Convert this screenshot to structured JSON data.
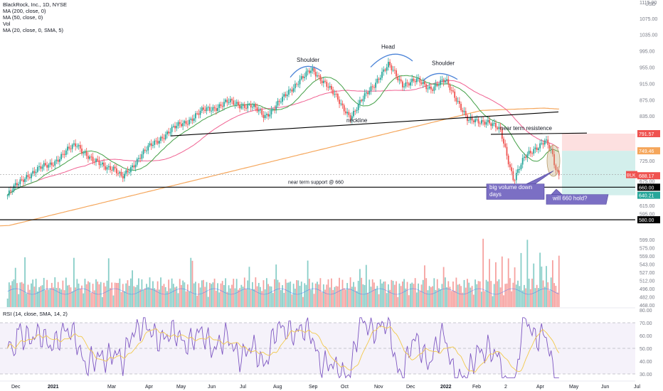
{
  "header": {
    "title": "BlackRock, Inc., 1D, NYSE",
    "indicators": [
      "MA (200, close, 0)",
      "MA (50, close, 0)",
      "Vol",
      "MA (20, close, 0, SMA, 5)"
    ],
    "currency": "USD"
  },
  "rsi_legend": "RSI (14, close, SMA, 14, 2)",
  "chart_data": [
    {
      "type": "candlestick",
      "ylim": [
        561,
        1120
      ],
      "price_axis_ticks": [
        1115.0,
        1075.0,
        1035.0,
        995.0,
        955.0,
        915.0,
        875.0,
        835.0,
        791.57,
        749.46,
        725.0,
        688.17,
        675.0,
        660.0,
        640.21,
        615.0,
        595.0,
        580.0
      ],
      "time_axis_ticks": [
        "Dec",
        "2021",
        "Mar",
        "Apr",
        "May",
        "Jun",
        "Jul",
        "Aug",
        "Sep",
        "Oct",
        "Nov",
        "Dec",
        "2022",
        "Feb",
        "2",
        "Apr",
        "May",
        "Jun",
        "Jul"
      ],
      "close_path": [
        [
          "2020-11-23",
          640
        ],
        [
          "2020-12-10",
          688
        ],
        [
          "2020-12-31",
          715
        ],
        [
          "2021-01-13",
          738
        ],
        [
          "2021-01-26",
          768
        ],
        [
          "2021-02-10",
          722
        ],
        [
          "2021-03-01",
          708
        ],
        [
          "2021-03-09",
          680
        ],
        [
          "2021-03-25",
          735
        ],
        [
          "2021-04-15",
          785
        ],
        [
          "2021-05-03",
          815
        ],
        [
          "2021-05-24",
          848
        ],
        [
          "2021-06-15",
          868
        ],
        [
          "2021-07-06",
          860
        ],
        [
          "2021-07-19",
          835
        ],
        [
          "2021-08-05",
          875
        ],
        [
          "2021-08-20",
          925
        ],
        [
          "2021-09-01",
          945
        ],
        [
          "2021-09-14",
          918
        ],
        [
          "2021-09-28",
          860
        ],
        [
          "2021-10-07",
          835
        ],
        [
          "2021-10-21",
          885
        ],
        [
          "2021-11-03",
          935
        ],
        [
          "2021-11-11",
          958
        ],
        [
          "2021-11-24",
          915
        ],
        [
          "2021-12-08",
          920
        ],
        [
          "2021-12-20",
          905
        ],
        [
          "2022-01-03",
          920
        ],
        [
          "2022-01-13",
          880
        ],
        [
          "2022-01-24",
          820
        ],
        [
          "2022-02-10",
          825
        ],
        [
          "2022-02-23",
          795
        ],
        [
          "2022-03-07",
          680
        ],
        [
          "2022-03-17",
          730
        ],
        [
          "2022-03-28",
          760
        ],
        [
          "2022-04-05",
          775
        ],
        [
          "2022-04-11",
          745
        ],
        [
          "2022-04-14",
          710
        ],
        [
          "2022-04-18",
          688
        ]
      ],
      "last_price": 688.17,
      "lines": {
        "neckline_label": "neckline",
        "resistance_label": "near term resistence",
        "support_label": "near term support @ 660",
        "resistance_price": 791.57,
        "support_price": 660.0,
        "lower_support_price": 580.0
      },
      "position_zone": {
        "stop": 791.57,
        "entry": 749.46,
        "target": 640.21
      },
      "annotations": {
        "head": "Head",
        "left_shoulder": "Shoulder",
        "right_shoulder": "Shoulder",
        "volume_note": "big volume down days",
        "question": "will 660 hold?"
      },
      "tickers": {
        "symbol": "BLK"
      }
    },
    {
      "type": "bar",
      "title": "Vol",
      "volume_axis_ticks": [
        599.0,
        575.0,
        559.0,
        543.0,
        527.0,
        512.0,
        496.0,
        482.0,
        468.0
      ]
    },
    {
      "type": "line",
      "title": "RSI (14, close, SMA, 14, 2)",
      "ylim": [
        25,
        80
      ],
      "rsi_axis_ticks": [
        80.0,
        70.0,
        60.0,
        50.0,
        40.0,
        30.0
      ],
      "bands": [
        70,
        50,
        30
      ]
    }
  ],
  "colors": {
    "up": "#26a69a",
    "down": "#ef5350",
    "ma200": "#f5a65b",
    "ma50": "#f06292",
    "ma20": "#43a047",
    "rsi": "#7e57c2",
    "rsi_ma": "#f2c94c",
    "annotation_blue": "#4c84d8",
    "callout": "#7b6fc4",
    "stop_zone": "#fde0e0",
    "target_zone": "#d3efec"
  }
}
